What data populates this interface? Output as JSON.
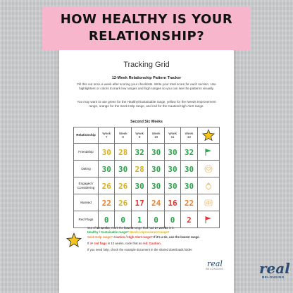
{
  "banner": {
    "line1": "HOW HEALTHY IS YOUR",
    "line2": "RELATIONSHIP?"
  },
  "sheet": {
    "title": "Tracking Grid",
    "subtitle": "12-Week Relationship Pattern Tracker",
    "paragraph1": "Fill this out once a week after scoring your checklists. Write your total score for each section. Use highlighters or colors to mark low ranges and high ranges so you can see the patterns visually.",
    "paragraph2": "You may want to use green for the Healthy/Sustainable range, yellow for the Needs Improvement range, orange for the Seek Help range, and red for the Caution/High Alert range.",
    "section_title": "Second Six Weeks",
    "table": {
      "header_first": "Relationship",
      "weeks": [
        [
          "Week",
          "7"
        ],
        [
          "Week",
          "8"
        ],
        [
          "Week",
          "9"
        ],
        [
          "Week",
          "10"
        ],
        [
          "Week",
          "11"
        ],
        [
          "Week",
          "12"
        ]
      ],
      "rows": [
        {
          "label": [
            "Friendship"
          ],
          "scores": [
            {
              "v": "30",
              "c": "y"
            },
            {
              "v": "28",
              "c": "y"
            },
            {
              "v": "32",
              "c": "g"
            },
            {
              "v": "30",
              "c": "g"
            },
            {
              "v": "30",
              "c": "g"
            },
            {
              "v": "32",
              "c": "g"
            }
          ],
          "icon": "green-flag-icon"
        },
        {
          "label": [
            "Dating"
          ],
          "scores": [
            {
              "v": "30",
              "c": "g"
            },
            {
              "v": "30",
              "c": "g"
            },
            {
              "v": "28",
              "c": "y"
            },
            {
              "v": "30",
              "c": "g"
            },
            {
              "v": "30",
              "c": "g"
            },
            {
              "v": "30",
              "c": "g"
            }
          ],
          "icon": "heart-icon"
        },
        {
          "label": [
            "Engaged /",
            "Considering"
          ],
          "scores": [
            {
              "v": "26",
              "c": "y"
            },
            {
              "v": "26",
              "c": "y"
            },
            {
              "v": "30",
              "c": "g"
            },
            {
              "v": "30",
              "c": "g"
            },
            {
              "v": "30",
              "c": "g"
            },
            {
              "v": "30",
              "c": "g"
            }
          ],
          "icon": "ring-icon"
        },
        {
          "label": [
            "Married"
          ],
          "scores": [
            {
              "v": "22",
              "c": "o"
            },
            {
              "v": "26",
              "c": "y"
            },
            {
              "v": "17",
              "c": "r"
            },
            {
              "v": "24",
              "c": "o"
            },
            {
              "v": "16",
              "c": "r"
            },
            {
              "v": "22",
              "c": "o"
            }
          ],
          "icon": "rings-icon"
        },
        {
          "label": [
            "Red Flags"
          ],
          "scores": [
            {
              "v": "0",
              "c": "g"
            },
            {
              "v": "0",
              "c": "g"
            },
            {
              "v": "1",
              "c": "g"
            },
            {
              "v": "0",
              "c": "g"
            },
            {
              "v": "0",
              "c": "g"
            },
            {
              "v": "2",
              "c": "r"
            }
          ],
          "icon": "red-flag-icon"
        }
      ]
    },
    "notes": {
      "n1_a": "Out of ",
      "n1_b": "12 weeks",
      "n1_c": ", mark the ",
      "n1_d": "lowest",
      "n1_e": " range that had ",
      "n1_f": "4+ weeks",
      "n1_g": " in it.",
      "n2_green": "Healthy / Sustainable range?",
      "n2_yellow": " Needs improvement range?",
      "n3_orange": "Seek Help range?",
      "n3_red": " Caution / High Alert range?",
      "n3_tail": " If it's a tie, use the lowest range.",
      "n4_a": "If ",
      "n4_b": "4+ red flags",
      "n4_c": " in 12 weeks, code that as ",
      "n4_d": "red: Caution.",
      "n5": "If you need help, check the example document in the shared downloads folder."
    },
    "brand": {
      "script": "real",
      "tag": "BELONGING"
    }
  },
  "logo": {
    "script": "real",
    "tag": "BELONGING"
  },
  "colors": {
    "banner": "#f7b6cc",
    "green": "#2aa44a",
    "yellow": "#d7b21c",
    "orange": "#f07f24",
    "red": "#e2342c",
    "brand": "#2b4b73"
  }
}
